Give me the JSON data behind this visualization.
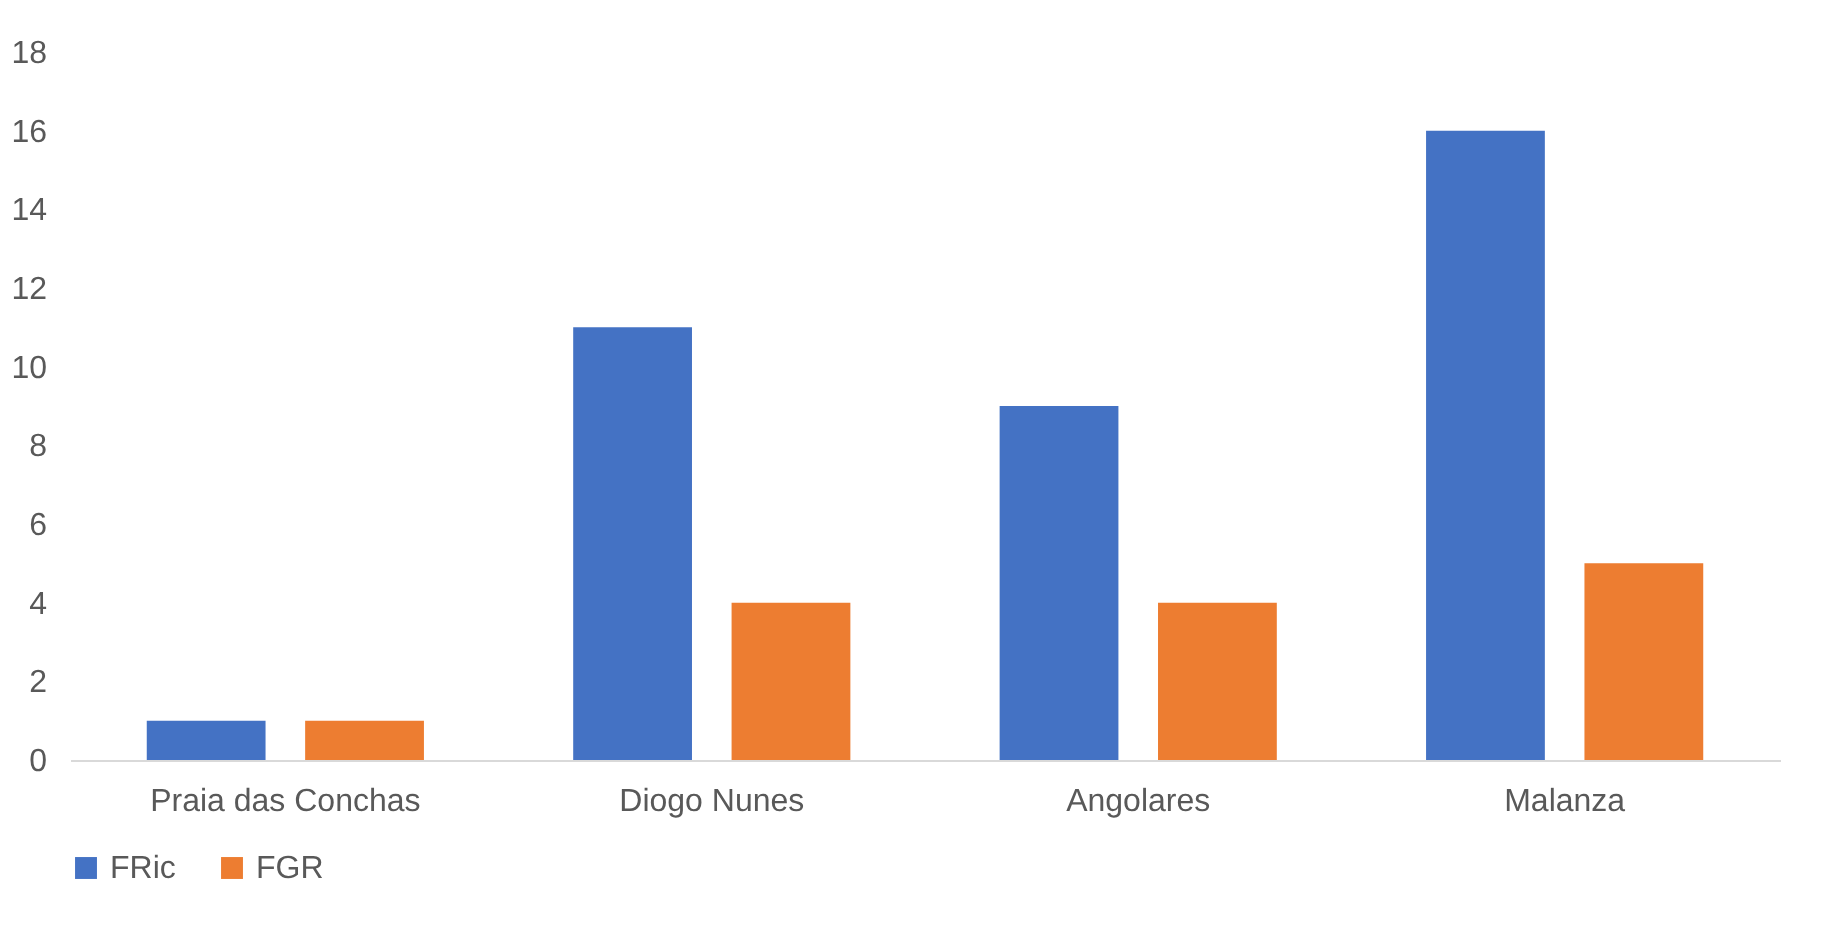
{
  "chart_data": {
    "type": "bar",
    "categories": [
      "Praia das Conchas",
      "Diogo Nunes",
      "Angolares",
      "Malanza"
    ],
    "series": [
      {
        "name": "FRic",
        "color": "#4472c4",
        "values": [
          1,
          11,
          9,
          16
        ]
      },
      {
        "name": "FGR",
        "color": "#ed7d31",
        "values": [
          1,
          4,
          4,
          5
        ]
      }
    ],
    "ylim": [
      0,
      18
    ],
    "yticks": [
      0,
      2,
      4,
      6,
      8,
      10,
      12,
      14,
      16,
      18
    ],
    "grid": false,
    "legend": "bottom"
  }
}
